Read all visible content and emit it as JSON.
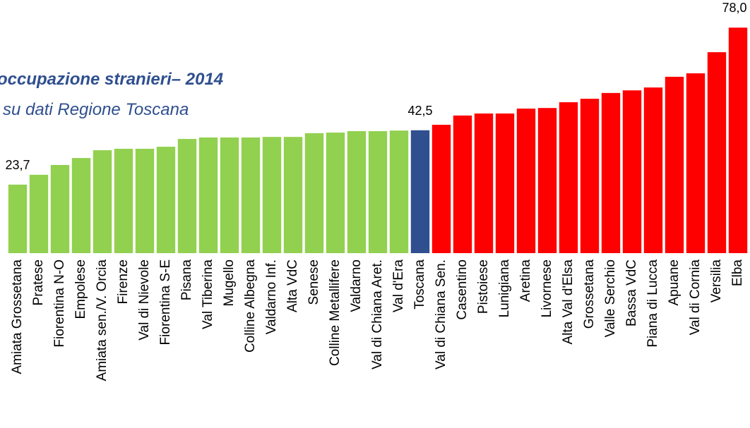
{
  "chart_data": {
    "type": "bar",
    "title": "occupazione stranieri– 2014",
    "subtitle": "su dati Regione Toscana",
    "categories": [
      "Amiata Grossetana",
      "Pratese",
      "Fiorentina N-O",
      "Empolese",
      "Amiata sen./V. Orcia",
      "Firenze",
      "Val di Nievole",
      "Fiorentina S-E",
      "Pisana",
      "Val Tiberina",
      "Mugello",
      "Colline Albegna",
      "Valdarno Inf.",
      "Alta VdC",
      "Senese",
      "Colline Metallifere",
      "Valdarno",
      "Val di Chiana Aret.",
      "Val d'Era",
      "Toscana",
      "Val di Chiana Sen.",
      "Casentino",
      "Pistoiese",
      "Lunigiana",
      "Aretina",
      "Livornese",
      "Alta Val d'Elsa",
      "Grossetana",
      "Valle Serchio",
      "Bassa VdC",
      "Piana di Lucca",
      "Apuane",
      "Val di Cornia",
      "Versilia",
      "Elba"
    ],
    "values": [
      23.7,
      27.1,
      30.5,
      32.9,
      35.6,
      36.1,
      36.1,
      36.8,
      39.5,
      40.0,
      40.0,
      40.0,
      40.2,
      40.2,
      41.5,
      41.7,
      42.2,
      42.2,
      42.4,
      42.5,
      44.4,
      47.6,
      48.3,
      48.3,
      50.0,
      50.2,
      52.2,
      53.4,
      55.4,
      56.3,
      57.3,
      61.0,
      62.2,
      69.5,
      78.0
    ],
    "value_labels": [
      "23,7",
      null,
      null,
      null,
      null,
      null,
      null,
      null,
      null,
      null,
      null,
      null,
      null,
      null,
      null,
      null,
      null,
      null,
      null,
      "42,5",
      null,
      null,
      null,
      null,
      null,
      null,
      null,
      null,
      null,
      null,
      null,
      null,
      null,
      null,
      "78,0"
    ],
    "colors": [
      "#92d050",
      "#92d050",
      "#92d050",
      "#92d050",
      "#92d050",
      "#92d050",
      "#92d050",
      "#92d050",
      "#92d050",
      "#92d050",
      "#92d050",
      "#92d050",
      "#92d050",
      "#92d050",
      "#92d050",
      "#92d050",
      "#92d050",
      "#92d050",
      "#92d050",
      "#2f4f8f",
      "#ff0000",
      "#ff0000",
      "#ff0000",
      "#ff0000",
      "#ff0000",
      "#ff0000",
      "#ff0000",
      "#ff0000",
      "#ff0000",
      "#ff0000",
      "#ff0000",
      "#ff0000",
      "#ff0000",
      "#ff0000",
      "#ff0000"
    ],
    "ylim": [
      0,
      80
    ]
  }
}
